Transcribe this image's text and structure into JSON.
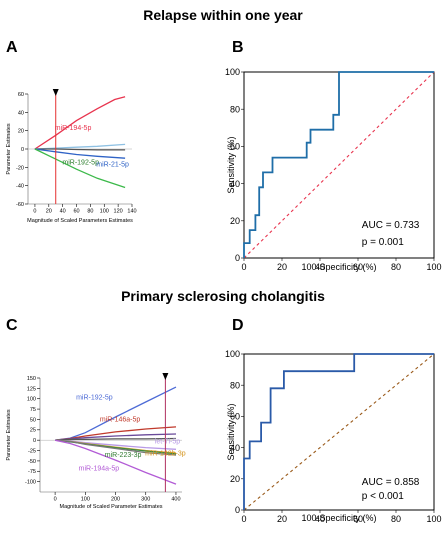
{
  "section_titles": [
    "Relapse within one year",
    "Primary sclerosing cholangitis"
  ],
  "chart_data": [
    {
      "panel": "A",
      "type": "line",
      "xlabel": "Magnitude of Scaled Parameters Estimates",
      "ylabel": "Parameter Estimates",
      "xlim": [
        -10,
        140
      ],
      "ylim": [
        -60,
        60
      ],
      "xticks": [
        0,
        20,
        40,
        60,
        80,
        100,
        120,
        140
      ],
      "yticks": [
        -60,
        -40,
        -20,
        0,
        20,
        40,
        60
      ],
      "marker_x": 30,
      "series": [
        {
          "name": "miR-194-5p",
          "color": "#e8344e",
          "points": [
            [
              0,
              0
            ],
            [
              30,
              15
            ],
            [
              60,
              31
            ],
            [
              90,
              44
            ],
            [
              115,
              54
            ],
            [
              130,
              57
            ]
          ]
        },
        {
          "name": "",
          "color": "#8fc1e3",
          "points": [
            [
              0,
              0
            ],
            [
              30,
              1
            ],
            [
              60,
              2
            ],
            [
              90,
              3
            ],
            [
              130,
              5
            ]
          ]
        },
        {
          "name": "",
          "color": "#555555",
          "points": [
            [
              0,
              0
            ],
            [
              30,
              0
            ],
            [
              60,
              -0.5
            ],
            [
              90,
              -1
            ],
            [
              130,
              -1
            ]
          ]
        },
        {
          "name": "miR-21-5p",
          "color": "#2f63c6",
          "points": [
            [
              0,
              0
            ],
            [
              30,
              -3
            ],
            [
              60,
              -6
            ],
            [
              90,
              -8
            ],
            [
              130,
              -10
            ]
          ]
        },
        {
          "name": "miR-192-5p",
          "color": "#3cb94a",
          "points": [
            [
              0,
              0
            ],
            [
              30,
              -11
            ],
            [
              60,
              -22
            ],
            [
              90,
              -32
            ],
            [
              130,
              -42
            ]
          ]
        }
      ],
      "labels": [
        {
          "text": "miR-194-5p",
          "x": 55,
          "y": 21,
          "color": "#e8344e"
        },
        {
          "text": "miR-192-5p",
          "x": 66,
          "y": -17,
          "color": "#2a7d2a"
        },
        {
          "text": "miR-21-5p",
          "x": 112,
          "y": -19,
          "color": "#2f63c6"
        }
      ]
    },
    {
      "panel": "B",
      "type": "line",
      "xlabel": "100-Specificity (%)",
      "ylabel": "Sensitivity (%)",
      "xlim": [
        0,
        100
      ],
      "ylim": [
        0,
        100
      ],
      "xticks": [
        0,
        20,
        40,
        60,
        80,
        100
      ],
      "yticks": [
        0,
        20,
        40,
        60,
        80,
        100
      ],
      "roc": [
        [
          0,
          0
        ],
        [
          0,
          8
        ],
        [
          3,
          8
        ],
        [
          3,
          15
        ],
        [
          6,
          15
        ],
        [
          6,
          23
        ],
        [
          8,
          23
        ],
        [
          8,
          38
        ],
        [
          10,
          38
        ],
        [
          10,
          46
        ],
        [
          15,
          46
        ],
        [
          15,
          54
        ],
        [
          25,
          54
        ],
        [
          25,
          54
        ],
        [
          33,
          54
        ],
        [
          33,
          62
        ],
        [
          35,
          62
        ],
        [
          35,
          69
        ],
        [
          47,
          69
        ],
        [
          47,
          77
        ],
        [
          50,
          77
        ],
        [
          50,
          100
        ],
        [
          100,
          100
        ]
      ],
      "roc_color": "#1f6ea8",
      "diagonal_color": "#e8344e",
      "auc": "AUC = 0.733",
      "p": "p = 0.001"
    },
    {
      "panel": "C",
      "type": "line",
      "xlabel": "Magnitude of Scaled Parameter Estimates",
      "ylabel": "Parameter Estimates",
      "xlim": [
        -50,
        420
      ],
      "ylim": [
        -125,
        150
      ],
      "xticks": [
        0,
        100,
        200,
        300,
        400
      ],
      "yticks": [
        -100,
        -75,
        -50,
        -25,
        0,
        25,
        50,
        75,
        100,
        125,
        150
      ],
      "marker_x": 365,
      "series": [
        {
          "name": "miR-192-5p",
          "color": "#4d6bd6",
          "points": [
            [
              0,
              0
            ],
            [
              50,
              5
            ],
            [
              100,
              18
            ],
            [
              200,
              56
            ],
            [
              300,
              92
            ],
            [
              400,
              128
            ]
          ]
        },
        {
          "name": "miR-146a-5p",
          "color": "#c0392b",
          "points": [
            [
              0,
              0
            ],
            [
              50,
              4
            ],
            [
              100,
              10
            ],
            [
              200,
              20
            ],
            [
              300,
              27
            ],
            [
              400,
              32
            ]
          ]
        },
        {
          "name": "",
          "color": "#6a4a9a",
          "points": [
            [
              0,
              0
            ],
            [
              50,
              3
            ],
            [
              100,
              6
            ],
            [
              200,
              10
            ],
            [
              300,
              13
            ],
            [
              400,
              15
            ]
          ]
        },
        {
          "name": "",
          "color": "#555555",
          "points": [
            [
              0,
              0
            ],
            [
              50,
              2
            ],
            [
              100,
              2
            ],
            [
              200,
              3
            ],
            [
              300,
              3
            ],
            [
              400,
              4
            ]
          ]
        },
        {
          "name": "let-7i-5p",
          "color": "#b89ae6",
          "points": [
            [
              0,
              0
            ],
            [
              50,
              -2
            ],
            [
              100,
              -6
            ],
            [
              200,
              -12
            ],
            [
              300,
              -18
            ],
            [
              400,
              -22
            ]
          ]
        },
        {
          "name": "miR-142b-3p",
          "color": "#e0a030",
          "points": [
            [
              0,
              0
            ],
            [
              50,
              -3
            ],
            [
              100,
              -8
            ],
            [
              200,
              -17
            ],
            [
              300,
              -25
            ],
            [
              400,
              -31
            ]
          ]
        },
        {
          "name": "miR-223-3p",
          "color": "#3c8a3c",
          "points": [
            [
              0,
              0
            ],
            [
              50,
              -4
            ],
            [
              100,
              -9
            ],
            [
              200,
              -18
            ],
            [
              300,
              -26
            ],
            [
              400,
              -33
            ]
          ]
        },
        {
          "name": "",
          "color": "#777777",
          "points": [
            [
              0,
              0
            ],
            [
              50,
              -3
            ],
            [
              100,
              -10
            ],
            [
              200,
              -20
            ],
            [
              300,
              -30
            ],
            [
              400,
              -36
            ]
          ]
        },
        {
          "name": "miR-194a-5p",
          "color": "#b25bd6",
          "points": [
            [
              0,
              0
            ],
            [
              50,
              -8
            ],
            [
              100,
              -20
            ],
            [
              200,
              -48
            ],
            [
              300,
              -78
            ],
            [
              400,
              -106
            ]
          ]
        }
      ],
      "labels": [
        {
          "text": "miR-192-5p",
          "x": 130,
          "y": 98,
          "color": "#4d6bd6"
        },
        {
          "text": "miR-146a-5p",
          "x": 215,
          "y": 45,
          "color": "#c0392b"
        },
        {
          "text": "let-7i-5p",
          "x": 372,
          "y": -8,
          "color": "#b89ae6"
        },
        {
          "text": "miR-142b-3p",
          "x": 365,
          "y": -37,
          "color": "#d4941c"
        },
        {
          "text": "miR-223-3p",
          "x": 225,
          "y": -40,
          "color": "#2f7a2f"
        },
        {
          "text": "miR-194a-5p",
          "x": 145,
          "y": -73,
          "color": "#b25bd6"
        }
      ]
    },
    {
      "panel": "D",
      "type": "line",
      "xlabel": "100-Specificity (%)",
      "ylabel": "Sensitivity (%)",
      "xlim": [
        0,
        100
      ],
      "ylim": [
        0,
        100
      ],
      "xticks": [
        0,
        20,
        40,
        60,
        80,
        100
      ],
      "yticks": [
        0,
        20,
        40,
        60,
        80,
        100
      ],
      "roc": [
        [
          0,
          0
        ],
        [
          0,
          33
        ],
        [
          3,
          33
        ],
        [
          3,
          44
        ],
        [
          9,
          44
        ],
        [
          9,
          56
        ],
        [
          14,
          56
        ],
        [
          14,
          78
        ],
        [
          21,
          78
        ],
        [
          21,
          89
        ],
        [
          58,
          89
        ],
        [
          58,
          100
        ],
        [
          100,
          100
        ]
      ],
      "roc_color": "#2a5aa8",
      "diagonal_color": "#9a5a1a",
      "auc": "AUC = 0.858",
      "p": "p < 0.001"
    }
  ]
}
